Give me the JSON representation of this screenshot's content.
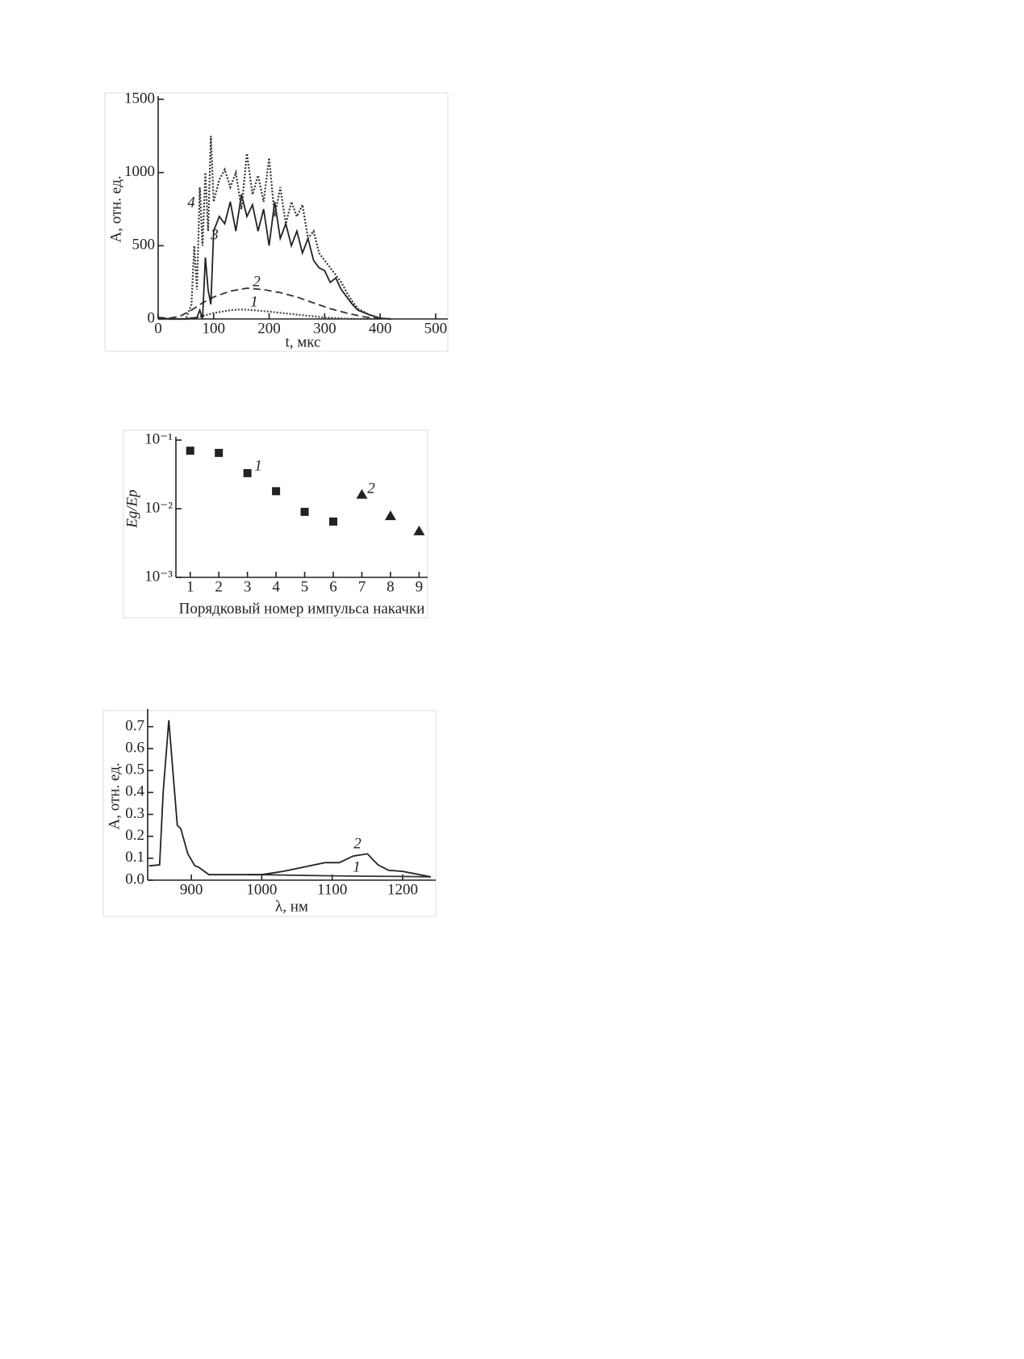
{
  "chart_data": [
    {
      "type": "line",
      "y_label": "A, отн. ед.",
      "x_label": "t, мкс",
      "xlim": [
        0,
        522
      ],
      "ylim": [
        0,
        1500
      ],
      "xticks": [
        0,
        100,
        200,
        300,
        400,
        500
      ],
      "yticks": [
        0,
        500,
        1000,
        1500
      ],
      "series": [
        {
          "name": "1",
          "color": "#444",
          "style": "dotted",
          "x": [
            0,
            50,
            70,
            100,
            130,
            150,
            170,
            200,
            250,
            300,
            350,
            400
          ],
          "values": [
            0,
            0,
            10,
            40,
            60,
            65,
            60,
            50,
            30,
            10,
            0,
            0
          ]
        },
        {
          "name": "2",
          "color": "#333",
          "style": "dashed",
          "x": [
            0,
            20,
            40,
            60,
            80,
            100,
            130,
            160,
            190,
            220,
            250,
            280,
            310,
            340,
            370,
            400
          ],
          "values": [
            10,
            5,
            20,
            60,
            110,
            150,
            190,
            210,
            200,
            180,
            150,
            110,
            70,
            40,
            15,
            0
          ]
        },
        {
          "name": "3",
          "color": "#222",
          "style": "solid",
          "x": [
            0,
            20,
            50,
            70,
            75,
            80,
            85,
            90,
            95,
            100,
            110,
            120,
            130,
            140,
            150,
            160,
            170,
            180,
            190,
            200,
            210,
            220,
            230,
            240,
            250,
            260,
            270,
            280,
            290,
            300,
            310,
            320,
            330,
            340,
            350,
            360,
            380,
            400,
            420
          ],
          "values": [
            10,
            0,
            0,
            10,
            60,
            0,
            420,
            200,
            100,
            600,
            700,
            650,
            800,
            600,
            850,
            700,
            780,
            600,
            750,
            500,
            800,
            550,
            650,
            500,
            600,
            450,
            550,
            400,
            350,
            330,
            250,
            280,
            200,
            150,
            100,
            60,
            30,
            5,
            0
          ]
        },
        {
          "name": "4",
          "color": "#333",
          "style": "dotted",
          "x": [
            0,
            50,
            60,
            65,
            70,
            75,
            80,
            85,
            90,
            95,
            100,
            110,
            120,
            130,
            140,
            150,
            160,
            170,
            180,
            190,
            200,
            210,
            220,
            230,
            240,
            250,
            260,
            270,
            280,
            290,
            300,
            310,
            320,
            330,
            340,
            350,
            360,
            380,
            400,
            420
          ],
          "values": [
            0,
            0,
            100,
            500,
            200,
            900,
            500,
            1000,
            600,
            1250,
            800,
            950,
            1020,
            900,
            1000,
            750,
            1130,
            850,
            980,
            800,
            1100,
            700,
            900,
            650,
            800,
            700,
            780,
            550,
            600,
            450,
            400,
            350,
            300,
            250,
            180,
            120,
            70,
            30,
            5,
            0
          ]
        }
      ]
    },
    {
      "type": "scatter",
      "y_label": "Eg/Ep",
      "x_label": "Порядковый номер импульса накачки",
      "log_y": true,
      "xlim": [
        0.5,
        9.3
      ],
      "ylim": [
        0.001,
        0.1
      ],
      "xticks": [
        1,
        2,
        3,
        4,
        5,
        6,
        7,
        8,
        9
      ],
      "yticks": [
        {
          "value": 0.001,
          "label": "10⁻³"
        },
        {
          "value": 0.01,
          "label": "10⁻²"
        },
        {
          "value": 0.1,
          "label": "10⁻¹"
        }
      ],
      "series": [
        {
          "name": "1",
          "color": "#222",
          "marker": "square",
          "x": [
            1,
            2,
            3,
            4,
            5,
            6
          ],
          "values": [
            0.07,
            0.065,
            0.033,
            0.018,
            0.009,
            0.0065
          ]
        },
        {
          "name": "2",
          "color": "#222",
          "marker": "triangle",
          "x": [
            7,
            8,
            9
          ],
          "values": [
            0.016,
            0.0078,
            0.0047
          ]
        }
      ]
    },
    {
      "type": "line",
      "y_label": "A, отн. ед.",
      "x_label": "λ, нм",
      "xlim": [
        838,
        1247
      ],
      "ylim": [
        0,
        0.766
      ],
      "xticks": [
        900,
        1000,
        1100,
        1200
      ],
      "yticks": [
        {
          "value": 0,
          "label": "0.0"
        },
        0.1,
        0.2,
        0.3,
        0.4,
        0.5,
        0.6,
        0.7
      ],
      "series": [
        {
          "name": "1",
          "color": "#333",
          "style": "solid",
          "x": [
            980,
            1000,
            1050,
            1100,
            1150,
            1200,
            1240
          ],
          "values": [
            0.025,
            0.025,
            0.022,
            0.02,
            0.018,
            0.017,
            0.015
          ]
        },
        {
          "name": "2",
          "color": "#222",
          "style": "solid",
          "x": [
            840,
            855,
            860,
            868,
            875,
            880,
            885,
            895,
            905,
            910,
            925,
            950,
            1000,
            1030,
            1060,
            1090,
            1110,
            1130,
            1150,
            1165,
            1180,
            1200,
            1240
          ],
          "values": [
            0.065,
            0.07,
            0.4,
            0.73,
            0.45,
            0.25,
            0.235,
            0.12,
            0.065,
            0.06,
            0.025,
            0.025,
            0.025,
            0.04,
            0.06,
            0.08,
            0.08,
            0.11,
            0.12,
            0.07,
            0.045,
            0.04,
            0.015
          ]
        }
      ]
    }
  ]
}
